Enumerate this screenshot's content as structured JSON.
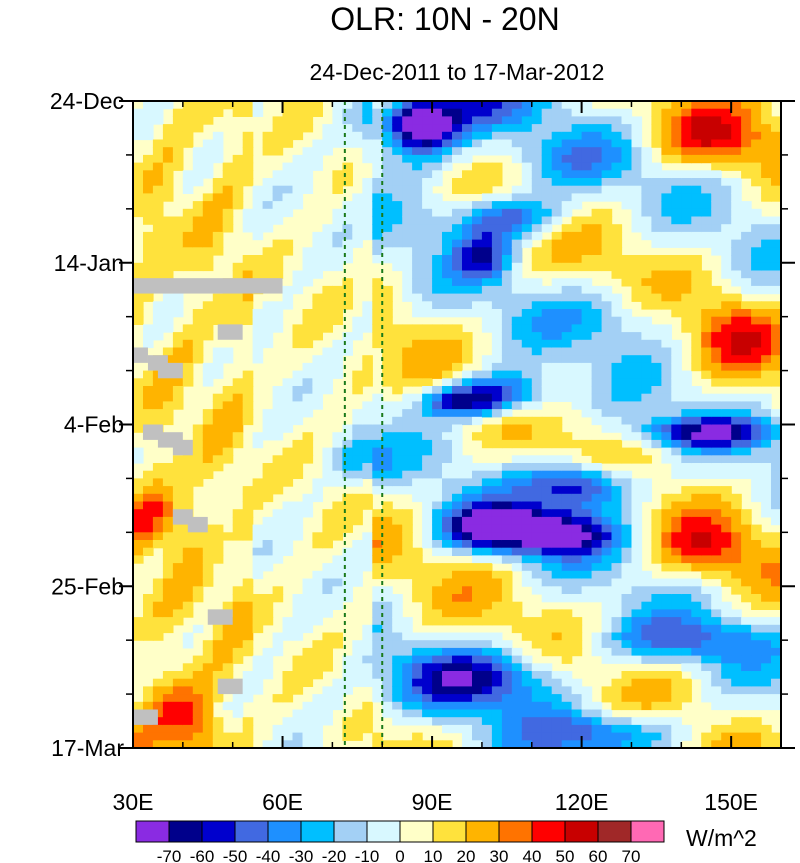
{
  "chart_data": {
    "type": "heatmap",
    "title": "OLR: 10N - 20N",
    "subtitle": "24-Dec-2011 to 17-Mar-2012",
    "x_axis": {
      "range": [
        30,
        160
      ],
      "ticks": [
        30,
        60,
        90,
        120,
        150
      ],
      "tick_labels": [
        "30E",
        "60E",
        "90E",
        "120E",
        "150E"
      ]
    },
    "y_axis": {
      "range_days": [
        0,
        84
      ],
      "ticks": [
        0,
        21,
        42,
        63,
        84
      ],
      "tick_labels": [
        "24-Dec",
        "14-Jan",
        "4-Feb",
        "25-Feb",
        "17-Mar"
      ],
      "direction": "top-to-bottom"
    },
    "reference_lines": [
      {
        "longitude": 72.5,
        "style": "dashed",
        "color": "#1a7a1a"
      },
      {
        "longitude": 80,
        "style": "dashed",
        "color": "#1a7a1a"
      }
    ],
    "colorbar": {
      "units": "W/m^2",
      "labels": [
        "-70",
        "-60",
        "-50",
        "-40",
        "-30",
        "-20",
        "-10",
        "0",
        "10",
        "20",
        "30",
        "40",
        "50",
        "60",
        "70"
      ],
      "colors": [
        "#8a2be2",
        "#00008b",
        "#0000cd",
        "#4169e1",
        "#1e90ff",
        "#00bfff",
        "#a3d0f5",
        "#d8f8ff",
        "#ffffc8",
        "#ffe23c",
        "#ffb400",
        "#ff7300",
        "#ff0000",
        "#c80000",
        "#a02828",
        "#ff69b4"
      ]
    },
    "anomaly_features": [
      {
        "lon": 88,
        "day": 3,
        "value": -75,
        "rx": 7,
        "ry": 3
      },
      {
        "lon": 86,
        "day": 5,
        "value": -45,
        "rx": 10,
        "ry": 5
      },
      {
        "lon": 98,
        "day": 1,
        "value": -30,
        "rx": 12,
        "ry": 3
      },
      {
        "lon": 105,
        "day": 15,
        "value": -55,
        "rx": 12,
        "ry": 3
      },
      {
        "lon": 100,
        "day": 20,
        "value": -45,
        "rx": 6,
        "ry": 3
      },
      {
        "lon": 104,
        "day": 38,
        "value": -60,
        "rx": 10,
        "ry": 3
      },
      {
        "lon": 95,
        "day": 39,
        "value": -50,
        "rx": 8,
        "ry": 2
      },
      {
        "lon": 145,
        "day": 43,
        "value": -55,
        "rx": 14,
        "ry": 2
      },
      {
        "lon": 120,
        "day": 50,
        "value": -70,
        "rx": 11,
        "ry": 3
      },
      {
        "lon": 112,
        "day": 56,
        "value": -75,
        "rx": 15,
        "ry": 3
      },
      {
        "lon": 100,
        "day": 55,
        "value": -40,
        "rx": 10,
        "ry": 3
      },
      {
        "lon": 100,
        "day": 75,
        "value": -55,
        "rx": 16,
        "ry": 4
      },
      {
        "lon": 125,
        "day": 82,
        "value": -45,
        "rx": 16,
        "ry": 3
      },
      {
        "lon": 140,
        "day": 70,
        "value": -35,
        "rx": 18,
        "ry": 3
      },
      {
        "lon": 115,
        "day": 8,
        "value": -25,
        "rx": 14,
        "ry": 4
      },
      {
        "lon": 130,
        "day": 28,
        "value": -20,
        "rx": 18,
        "ry": 4
      },
      {
        "lon": 76,
        "day": 47,
        "value": -25,
        "rx": 5,
        "ry": 3
      },
      {
        "lon": 145,
        "day": 5,
        "value": 35,
        "rx": 12,
        "ry": 4
      },
      {
        "lon": 150,
        "day": 30,
        "value": 30,
        "rx": 10,
        "ry": 5
      },
      {
        "lon": 40,
        "day": 80,
        "value": 35,
        "rx": 6,
        "ry": 5
      },
      {
        "lon": 35,
        "day": 54,
        "value": 30,
        "rx": 6,
        "ry": 4
      },
      {
        "lon": 145,
        "day": 58,
        "value": 30,
        "rx": 10,
        "ry": 4
      }
    ],
    "missing_data_marker_color": "#c0c0c0"
  }
}
